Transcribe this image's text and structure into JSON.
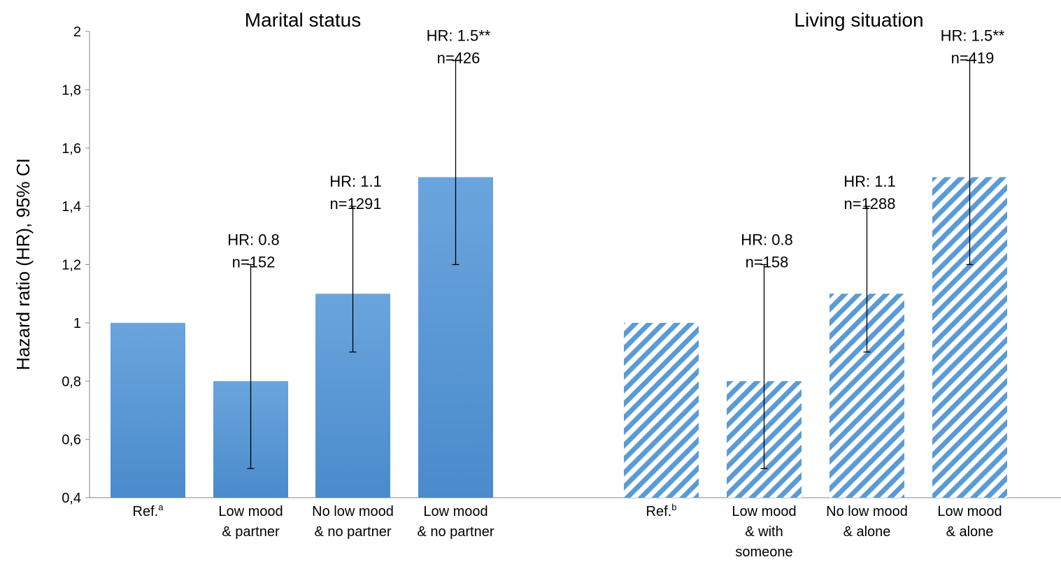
{
  "chart_data": {
    "type": "bar",
    "ylabel": "Hazard ratio (HR), 95% CI",
    "ylim": [
      0.4,
      2
    ],
    "yticks": [
      "0,4",
      "0,6",
      "0,8",
      "1",
      "1,2",
      "1,4",
      "1,6",
      "1,8",
      "2"
    ],
    "yticks_values": [
      0.4,
      0.6,
      0.8,
      1.0,
      1.2,
      1.4,
      1.6,
      1.8,
      2.0
    ],
    "grid": false,
    "colors": {
      "solid": "#5b9bd5",
      "hatch": "#5b9bd5",
      "background": "#ffffff",
      "error_bar": "#000000"
    },
    "groups": [
      {
        "title": "Marital status",
        "fill": "solid",
        "bars": [
          {
            "label": "Ref.",
            "sup": "a",
            "value": 1.0,
            "ci": null,
            "hr_text": "",
            "n_text": ""
          },
          {
            "label_lines": [
              "Low mood",
              "& partner"
            ],
            "value": 0.8,
            "ci": [
              0.5,
              1.2
            ],
            "hr_text": "HR: 0.8",
            "n_text": "n=152"
          },
          {
            "label_lines": [
              "No low mood",
              "& no partner"
            ],
            "value": 1.1,
            "ci": [
              0.9,
              1.4
            ],
            "hr_text": "HR: 1.1",
            "n_text": "n=1291"
          },
          {
            "label_lines": [
              "Low mood",
              "& no partner"
            ],
            "value": 1.5,
            "ci": [
              1.2,
              1.9
            ],
            "hr_text": "HR: 1.5**",
            "n_text": "n=426"
          }
        ]
      },
      {
        "title": "Living situation",
        "fill": "hatch",
        "bars": [
          {
            "label": "Ref.",
            "sup": "b",
            "value": 1.0,
            "ci": null,
            "hr_text": "",
            "n_text": ""
          },
          {
            "label_lines": [
              "Low mood",
              "& with",
              "someone"
            ],
            "value": 0.8,
            "ci": [
              0.5,
              1.2
            ],
            "hr_text": "HR: 0.8",
            "n_text": "n=158"
          },
          {
            "label_lines": [
              "No low mood",
              "& alone"
            ],
            "value": 1.1,
            "ci": [
              0.9,
              1.4
            ],
            "hr_text": "HR: 1.1",
            "n_text": "n=1288"
          },
          {
            "label_lines": [
              "Low mood",
              "& alone"
            ],
            "value": 1.5,
            "ci": [
              1.2,
              1.9
            ],
            "hr_text": "HR: 1.5**",
            "n_text": "n=419"
          }
        ]
      }
    ]
  }
}
